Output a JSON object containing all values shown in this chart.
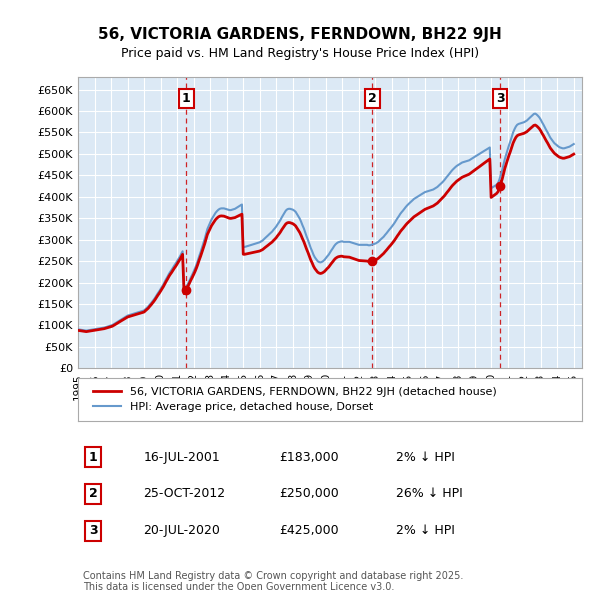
{
  "title": "56, VICTORIA GARDENS, FERNDOWN, BH22 9JH",
  "subtitle": "Price paid vs. HM Land Registry's House Price Index (HPI)",
  "plot_bg_color": "#dce9f5",
  "yticks": [
    0,
    50000,
    100000,
    150000,
    200000,
    250000,
    300000,
    350000,
    400000,
    450000,
    500000,
    550000,
    600000,
    650000
  ],
  "ytick_labels": [
    "£0",
    "£50K",
    "£100K",
    "£150K",
    "£200K",
    "£250K",
    "£300K",
    "£350K",
    "£400K",
    "£450K",
    "£500K",
    "£550K",
    "£600K",
    "£650K"
  ],
  "xmin": 1995.0,
  "xmax": 2025.5,
  "ymin": 0,
  "ymax": 680000,
  "purchases": [
    {
      "date_num": 2001.54,
      "price": 183000,
      "label": "1"
    },
    {
      "date_num": 2012.82,
      "price": 250000,
      "label": "2"
    },
    {
      "date_num": 2020.54,
      "price": 425000,
      "label": "3"
    }
  ],
  "legend_entries": [
    {
      "label": "56, VICTORIA GARDENS, FERNDOWN, BH22 9JH (detached house)",
      "color": "#cc0000",
      "lw": 2
    },
    {
      "label": "HPI: Average price, detached house, Dorset",
      "color": "#6699cc",
      "lw": 1.5
    }
  ],
  "table_rows": [
    {
      "num": "1",
      "date": "16-JUL-2001",
      "price": "£183,000",
      "note": "2% ↓ HPI"
    },
    {
      "num": "2",
      "date": "25-OCT-2012",
      "price": "£250,000",
      "note": "26% ↓ HPI"
    },
    {
      "num": "3",
      "date": "20-JUL-2020",
      "price": "£425,000",
      "note": "2% ↓ HPI"
    }
  ],
  "footnote": "Contains HM Land Registry data © Crown copyright and database right 2025.\nThis data is licensed under the Open Government Licence v3.0.",
  "hpi_years": [
    1995.0,
    1995.08,
    1995.17,
    1995.25,
    1995.33,
    1995.42,
    1995.5,
    1995.58,
    1995.67,
    1995.75,
    1995.83,
    1995.92,
    1996.0,
    1996.08,
    1996.17,
    1996.25,
    1996.33,
    1996.42,
    1996.5,
    1996.58,
    1996.67,
    1996.75,
    1996.83,
    1996.92,
    1997.0,
    1997.08,
    1997.17,
    1997.25,
    1997.33,
    1997.42,
    1997.5,
    1997.58,
    1997.67,
    1997.75,
    1997.83,
    1997.92,
    1998.0,
    1998.08,
    1998.17,
    1998.25,
    1998.33,
    1998.42,
    1998.5,
    1998.58,
    1998.67,
    1998.75,
    1998.83,
    1998.92,
    1999.0,
    1999.08,
    1999.17,
    1999.25,
    1999.33,
    1999.42,
    1999.5,
    1999.58,
    1999.67,
    1999.75,
    1999.83,
    1999.92,
    2000.0,
    2000.08,
    2000.17,
    2000.25,
    2000.33,
    2000.42,
    2000.5,
    2000.58,
    2000.67,
    2000.75,
    2000.83,
    2000.92,
    2001.0,
    2001.08,
    2001.17,
    2001.25,
    2001.33,
    2001.42,
    2001.5,
    2001.58,
    2001.67,
    2001.75,
    2001.83,
    2001.92,
    2002.0,
    2002.08,
    2002.17,
    2002.25,
    2002.33,
    2002.42,
    2002.5,
    2002.58,
    2002.67,
    2002.75,
    2002.83,
    2002.92,
    2003.0,
    2003.08,
    2003.17,
    2003.25,
    2003.33,
    2003.42,
    2003.5,
    2003.58,
    2003.67,
    2003.75,
    2003.83,
    2003.92,
    2004.0,
    2004.08,
    2004.17,
    2004.25,
    2004.33,
    2004.42,
    2004.5,
    2004.58,
    2004.67,
    2004.75,
    2004.83,
    2004.92,
    2005.0,
    2005.08,
    2005.17,
    2005.25,
    2005.33,
    2005.42,
    2005.5,
    2005.58,
    2005.67,
    2005.75,
    2005.83,
    2005.92,
    2006.0,
    2006.08,
    2006.17,
    2006.25,
    2006.33,
    2006.42,
    2006.5,
    2006.58,
    2006.67,
    2006.75,
    2006.83,
    2006.92,
    2007.0,
    2007.08,
    2007.17,
    2007.25,
    2007.33,
    2007.42,
    2007.5,
    2007.58,
    2007.67,
    2007.75,
    2007.83,
    2007.92,
    2008.0,
    2008.08,
    2008.17,
    2008.25,
    2008.33,
    2008.42,
    2008.5,
    2008.58,
    2008.67,
    2008.75,
    2008.83,
    2008.92,
    2009.0,
    2009.08,
    2009.17,
    2009.25,
    2009.33,
    2009.42,
    2009.5,
    2009.58,
    2009.67,
    2009.75,
    2009.83,
    2009.92,
    2010.0,
    2010.08,
    2010.17,
    2010.25,
    2010.33,
    2010.42,
    2010.5,
    2010.58,
    2010.67,
    2010.75,
    2010.83,
    2010.92,
    2011.0,
    2011.08,
    2011.17,
    2011.25,
    2011.33,
    2011.42,
    2011.5,
    2011.58,
    2011.67,
    2011.75,
    2011.83,
    2011.92,
    2012.0,
    2012.08,
    2012.17,
    2012.25,
    2012.33,
    2012.42,
    2012.5,
    2012.58,
    2012.67,
    2012.75,
    2012.83,
    2012.92,
    2013.0,
    2013.08,
    2013.17,
    2013.25,
    2013.33,
    2013.42,
    2013.5,
    2013.58,
    2013.67,
    2013.75,
    2013.83,
    2013.92,
    2014.0,
    2014.08,
    2014.17,
    2014.25,
    2014.33,
    2014.42,
    2014.5,
    2014.58,
    2014.67,
    2014.75,
    2014.83,
    2014.92,
    2015.0,
    2015.08,
    2015.17,
    2015.25,
    2015.33,
    2015.42,
    2015.5,
    2015.58,
    2015.67,
    2015.75,
    2015.83,
    2015.92,
    2016.0,
    2016.08,
    2016.17,
    2016.25,
    2016.33,
    2016.42,
    2016.5,
    2016.58,
    2016.67,
    2016.75,
    2016.83,
    2016.92,
    2017.0,
    2017.08,
    2017.17,
    2017.25,
    2017.33,
    2017.42,
    2017.5,
    2017.58,
    2017.67,
    2017.75,
    2017.83,
    2017.92,
    2018.0,
    2018.08,
    2018.17,
    2018.25,
    2018.33,
    2018.42,
    2018.5,
    2018.58,
    2018.67,
    2018.75,
    2018.83,
    2018.92,
    2019.0,
    2019.08,
    2019.17,
    2019.25,
    2019.33,
    2019.42,
    2019.5,
    2019.58,
    2019.67,
    2019.75,
    2019.83,
    2019.92,
    2020.0,
    2020.08,
    2020.17,
    2020.25,
    2020.33,
    2020.42,
    2020.5,
    2020.58,
    2020.67,
    2020.75,
    2020.83,
    2020.92,
    2021.0,
    2021.08,
    2021.17,
    2021.25,
    2021.33,
    2021.42,
    2021.5,
    2021.58,
    2021.67,
    2021.75,
    2021.83,
    2021.92,
    2022.0,
    2022.08,
    2022.17,
    2022.25,
    2022.33,
    2022.42,
    2022.5,
    2022.58,
    2022.67,
    2022.75,
    2022.83,
    2022.92,
    2023.0,
    2023.08,
    2023.17,
    2023.25,
    2023.33,
    2023.42,
    2023.5,
    2023.58,
    2023.67,
    2023.75,
    2023.83,
    2023.92,
    2024.0,
    2024.08,
    2024.17,
    2024.25,
    2024.33,
    2024.42,
    2024.5,
    2024.58,
    2024.67,
    2024.75,
    2024.83,
    2024.92,
    2025.0
  ],
  "hpi_values": [
    91000,
    90500,
    90000,
    89500,
    89000,
    88500,
    88000,
    88500,
    89000,
    89500,
    90000,
    90500,
    91000,
    91500,
    92000,
    92500,
    93000,
    93500,
    94000,
    95000,
    96000,
    97000,
    98000,
    99000,
    100000,
    101000,
    103000,
    105000,
    107000,
    109000,
    111000,
    113000,
    115000,
    117000,
    119000,
    121000,
    123000,
    124000,
    125000,
    126000,
    127000,
    128000,
    129000,
    130000,
    131000,
    132000,
    133000,
    134000,
    135000,
    138000,
    141000,
    144000,
    148000,
    152000,
    156000,
    160000,
    165000,
    170000,
    175000,
    180000,
    185000,
    190000,
    196000,
    202000,
    208000,
    214000,
    220000,
    225000,
    230000,
    235000,
    240000,
    245000,
    250000,
    255000,
    261000,
    267000,
    273000,
    179000,
    185000,
    191000,
    198000,
    205000,
    212000,
    219000,
    226000,
    233000,
    242000,
    251000,
    261000,
    271000,
    281000,
    291000,
    302000,
    314000,
    325000,
    333000,
    340000,
    347000,
    353000,
    358000,
    363000,
    367000,
    370000,
    372000,
    373000,
    373000,
    373000,
    372000,
    371000,
    370000,
    369000,
    369000,
    370000,
    371000,
    372000,
    374000,
    376000,
    378000,
    380000,
    382000,
    283000,
    283000,
    284000,
    285000,
    286000,
    287000,
    288000,
    289000,
    290000,
    291000,
    292000,
    293000,
    294000,
    296000,
    298000,
    301000,
    304000,
    307000,
    310000,
    313000,
    316000,
    319000,
    323000,
    327000,
    331000,
    336000,
    341000,
    346000,
    352000,
    358000,
    363000,
    368000,
    371000,
    372000,
    372000,
    371000,
    370000,
    368000,
    365000,
    360000,
    355000,
    349000,
    342000,
    334000,
    326000,
    317000,
    308000,
    299000,
    290000,
    281000,
    273000,
    265000,
    259000,
    254000,
    250000,
    248000,
    247000,
    248000,
    250000,
    253000,
    257000,
    261000,
    265000,
    270000,
    275000,
    280000,
    285000,
    289000,
    292000,
    294000,
    295000,
    296000,
    296000,
    295000,
    295000,
    295000,
    295000,
    295000,
    294000,
    293000,
    292000,
    291000,
    290000,
    289000,
    288000,
    288000,
    288000,
    288000,
    288000,
    288000,
    288000,
    287000,
    287000,
    288000,
    289000,
    290000,
    291000,
    293000,
    295000,
    298000,
    301000,
    304000,
    307000,
    311000,
    315000,
    319000,
    323000,
    327000,
    331000,
    335000,
    340000,
    345000,
    350000,
    355000,
    360000,
    364000,
    368000,
    372000,
    376000,
    380000,
    383000,
    386000,
    389000,
    392000,
    395000,
    397000,
    399000,
    401000,
    403000,
    405000,
    407000,
    409000,
    411000,
    412000,
    413000,
    414000,
    415000,
    416000,
    417000,
    419000,
    421000,
    423000,
    426000,
    429000,
    432000,
    435000,
    439000,
    443000,
    447000,
    451000,
    455000,
    459000,
    463000,
    466000,
    469000,
    472000,
    474000,
    476000,
    478000,
    480000,
    481000,
    482000,
    483000,
    484000,
    485000,
    487000,
    489000,
    491000,
    493000,
    495000,
    497000,
    499000,
    501000,
    503000,
    505000,
    507000,
    509000,
    511000,
    513000,
    515000,
    420000,
    422000,
    424000,
    426000,
    428000,
    432000,
    440000,
    450000,
    462000,
    475000,
    488000,
    500000,
    510000,
    520000,
    530000,
    540000,
    550000,
    558000,
    564000,
    568000,
    570000,
    571000,
    572000,
    573000,
    574000,
    576000,
    578000,
    581000,
    584000,
    587000,
    590000,
    593000,
    594000,
    592000,
    589000,
    585000,
    580000,
    574000,
    568000,
    562000,
    556000,
    550000,
    544000,
    538000,
    533000,
    529000,
    525000,
    522000,
    519000,
    517000,
    515000,
    514000,
    513000,
    513000,
    514000,
    515000,
    516000,
    517000,
    519000,
    521000,
    523000
  ]
}
